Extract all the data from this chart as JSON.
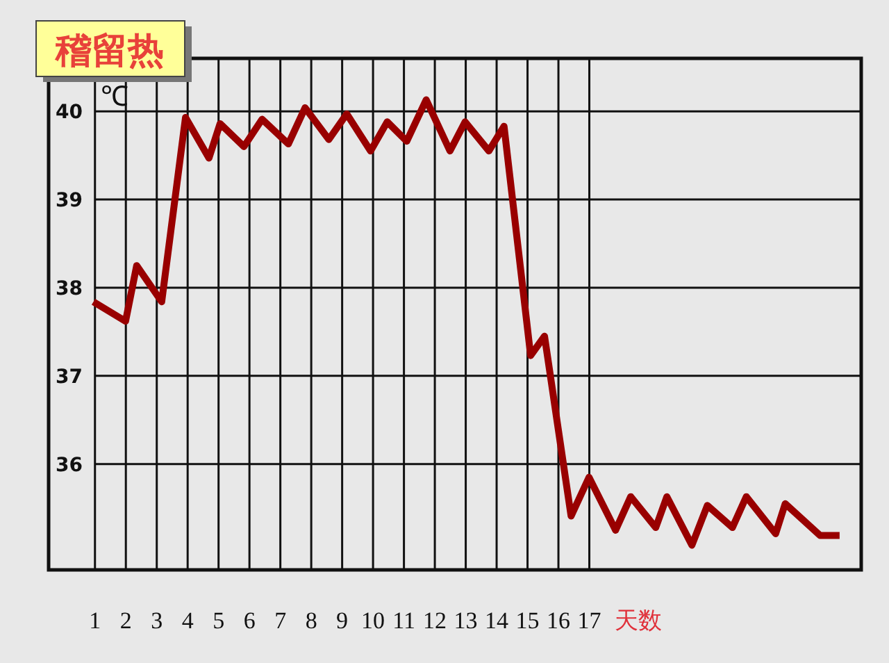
{
  "chart_data": {
    "type": "line",
    "title": "稽留热",
    "xlabel": "天数",
    "ylabel": "℃",
    "x": [
      0.95,
      1.99,
      2.35,
      3.16,
      3.93,
      4.69,
      5.05,
      5.82,
      6.41,
      7.26,
      7.8,
      8.57,
      9.15,
      9.92,
      10.46,
      11.09,
      11.72,
      12.49,
      12.98,
      13.75,
      14.24,
      15.1,
      15.55,
      16.41,
      16.99,
      17.85,
      18.34,
      19.15,
      19.51,
      20.32,
      20.82,
      21.63,
      22.08,
      23.03,
      23.34,
      24.47,
      25.1
    ],
    "series": [
      {
        "color": "#990000",
        "values": [
          37.84,
          37.62,
          38.25,
          37.84,
          39.93,
          39.47,
          39.86,
          39.6,
          39.91,
          39.63,
          40.04,
          39.68,
          39.97,
          39.55,
          39.88,
          39.66,
          40.13,
          39.55,
          39.88,
          39.55,
          39.83,
          37.23,
          37.45,
          35.41,
          35.85,
          35.25,
          35.63,
          35.28,
          35.63,
          35.08,
          35.53,
          35.28,
          35.63,
          35.21,
          35.55,
          35.19,
          35.19
        ]
      }
    ],
    "xlim": [
      -0.5,
      25.8
    ],
    "xticks": [
      1,
      2,
      3,
      4,
      5,
      6,
      7,
      8,
      9,
      10,
      11,
      12,
      13,
      14,
      15,
      16,
      17
    ],
    "ylim": [
      34.8,
      40.6
    ],
    "yticks": [
      36,
      37,
      38,
      39,
      40
    ],
    "grid": true
  }
}
